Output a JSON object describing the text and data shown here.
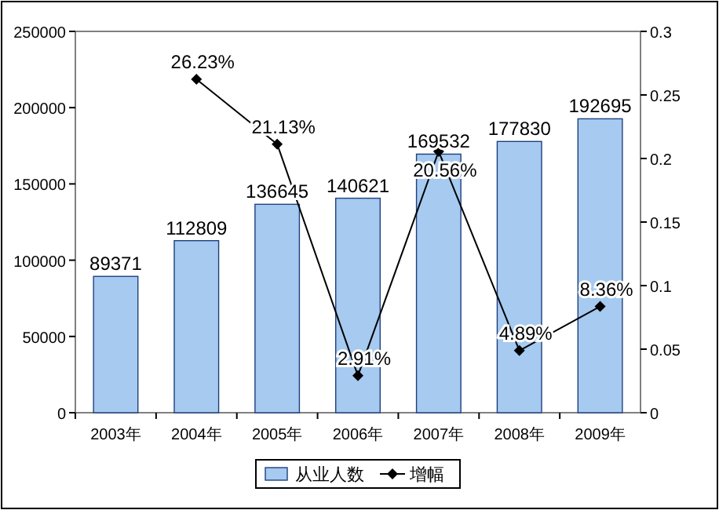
{
  "chart_data": {
    "type": "bar",
    "categories": [
      "2003年",
      "2004年",
      "2005年",
      "2006年",
      "2007年",
      "2008年",
      "2009年"
    ],
    "series": [
      {
        "name": "从业人数",
        "color": "#a6caf0",
        "values": [
          89371,
          112809,
          136645,
          140621,
          169532,
          177830,
          192695
        ],
        "value_labels": [
          "89371",
          "112809",
          "136645",
          "140621",
          "169532",
          "177830",
          "192695"
        ]
      },
      {
        "name": "增幅",
        "type": "line",
        "axis": "y2",
        "color": "#000000",
        "marker": "diamond",
        "values": [
          null,
          0.2623,
          0.2113,
          0.0291,
          0.2056,
          0.0489,
          0.0836
        ],
        "value_labels": [
          null,
          "26.23%",
          "21.13%",
          "2.91%",
          "20.56%",
          "4.89%",
          "8.36%"
        ]
      }
    ],
    "ylim": [
      0,
      250000
    ],
    "yticks": [
      0,
      50000,
      100000,
      150000,
      200000,
      250000
    ],
    "y2lim": [
      0,
      0.3
    ],
    "y2ticks": [
      0,
      0.05,
      0.1,
      0.15,
      0.2,
      0.25,
      0.3
    ],
    "legend": "bottom"
  }
}
